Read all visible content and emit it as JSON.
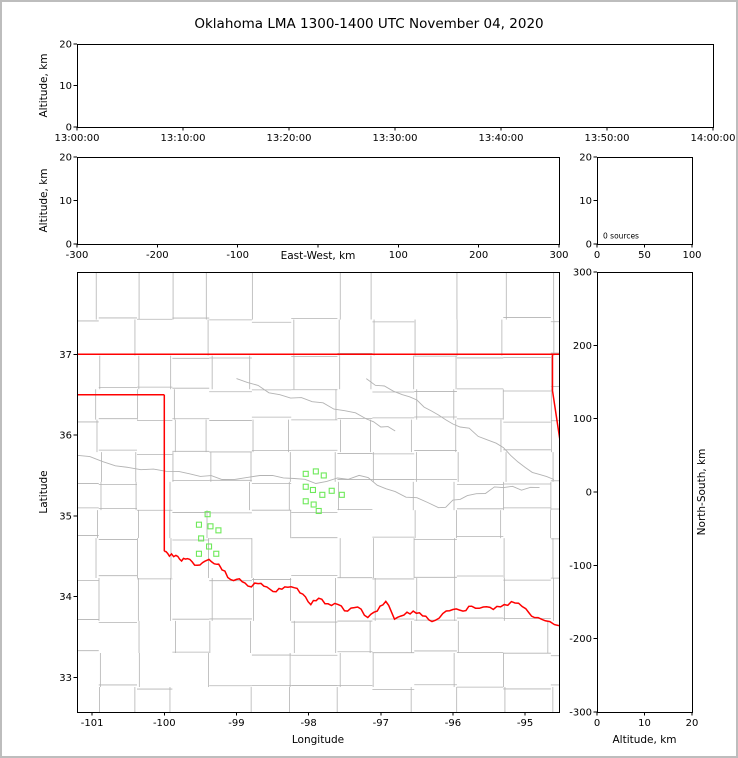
{
  "title": "Oklahoma LMA 1300-1400 UTC November 04, 2020",
  "colors": {
    "background": "#ffffff",
    "frame_border": "#bdbdbd",
    "axis": "#000000",
    "county_line": "#b3b3b3",
    "state_border": "#ff0000",
    "station_marker": "#6ee95a"
  },
  "chart_data": [
    {
      "id": "time_height_panel",
      "type": "scatter",
      "ylabel": "Altitude, km",
      "x_tick_labels": [
        "13:00:00",
        "13:10:00",
        "13:20:00",
        "13:30:00",
        "13:40:00",
        "13:50:00",
        "14:00:00"
      ],
      "ylim": [
        0,
        20
      ],
      "yticks": [
        0,
        10,
        20
      ],
      "points": []
    },
    {
      "id": "east_west_height_panel",
      "type": "scatter",
      "xlabel": "East-West, km",
      "ylabel": "Altitude, km",
      "xlim": [
        -300,
        300
      ],
      "xticks": [
        -300,
        -200,
        -100,
        0,
        100,
        200,
        300
      ],
      "ylim": [
        0,
        20
      ],
      "yticks": [
        0,
        10,
        20
      ],
      "points": []
    },
    {
      "id": "altitude_histogram_panel",
      "type": "bar",
      "annotation": "0 sources",
      "xlim": [
        0,
        100
      ],
      "xticks": [
        0,
        50,
        100
      ],
      "ylim": [
        0,
        20
      ],
      "yticks": [
        0,
        10,
        20
      ],
      "values": []
    },
    {
      "id": "plan_view_map",
      "type": "scatter",
      "xlabel": "Longitude",
      "ylabel": "Latitude",
      "xlim": [
        -101.21,
        -94.53
      ],
      "xticks": [
        -101,
        -100,
        -99,
        -98,
        -97,
        -96,
        -95
      ],
      "ylim": [
        32.57,
        38.02
      ],
      "yticks": [
        33,
        34,
        35,
        36,
        37
      ],
      "station_markers": [
        [
          -99.4,
          35.02
        ],
        [
          -99.52,
          34.89
        ],
        [
          -99.36,
          34.87
        ],
        [
          -99.25,
          34.82
        ],
        [
          -99.49,
          34.72
        ],
        [
          -99.38,
          34.62
        ],
        [
          -99.52,
          34.53
        ],
        [
          -99.28,
          34.53
        ],
        [
          -98.04,
          35.52
        ],
        [
          -97.9,
          35.55
        ],
        [
          -97.79,
          35.5
        ],
        [
          -98.04,
          35.36
        ],
        [
          -97.94,
          35.32
        ],
        [
          -97.68,
          35.31
        ],
        [
          -97.81,
          35.26
        ],
        [
          -98.04,
          35.18
        ],
        [
          -97.93,
          35.14
        ],
        [
          -97.86,
          35.06
        ],
        [
          -97.54,
          35.26
        ]
      ],
      "state_border_segments": [
        [
          [
            -101.21,
            37.0
          ],
          [
            -94.53,
            37.0
          ]
        ],
        [
          [
            -101.21,
            36.5
          ],
          [
            -100.0,
            36.5
          ]
        ],
        [
          [
            -100.0,
            36.5
          ],
          [
            -100.0,
            34.56
          ]
        ],
        [
          [
            -100.0,
            34.56
          ],
          [
            -99.93,
            34.5
          ],
          [
            -99.84,
            34.51
          ],
          [
            -99.76,
            34.44
          ],
          [
            -99.68,
            34.47
          ],
          [
            -99.58,
            34.39
          ],
          [
            -99.47,
            34.42
          ],
          [
            -99.38,
            34.46
          ],
          [
            -99.27,
            34.4
          ],
          [
            -99.2,
            34.33
          ],
          [
            -99.08,
            34.21
          ],
          [
            -98.96,
            34.22
          ],
          [
            -98.84,
            34.13
          ],
          [
            -98.7,
            34.16
          ],
          [
            -98.58,
            34.12
          ],
          [
            -98.45,
            34.06
          ],
          [
            -98.33,
            34.12
          ],
          [
            -98.2,
            34.11
          ],
          [
            -98.08,
            34.03
          ],
          [
            -97.97,
            33.9
          ],
          [
            -97.86,
            33.98
          ],
          [
            -97.73,
            33.91
          ],
          [
            -97.59,
            33.9
          ],
          [
            -97.46,
            33.82
          ],
          [
            -97.32,
            33.87
          ],
          [
            -97.18,
            33.74
          ],
          [
            -97.05,
            33.82
          ],
          [
            -96.93,
            33.94
          ],
          [
            -96.81,
            33.72
          ],
          [
            -96.68,
            33.77
          ],
          [
            -96.55,
            33.82
          ],
          [
            -96.42,
            33.76
          ],
          [
            -96.29,
            33.69
          ],
          [
            -96.14,
            33.79
          ],
          [
            -96.0,
            33.84
          ],
          [
            -95.86,
            33.82
          ],
          [
            -95.74,
            33.88
          ],
          [
            -95.58,
            33.87
          ],
          [
            -95.44,
            33.84
          ],
          [
            -95.29,
            33.9
          ],
          [
            -95.14,
            33.92
          ],
          [
            -94.99,
            33.85
          ],
          [
            -94.87,
            33.74
          ],
          [
            -94.72,
            33.7
          ],
          [
            -94.53,
            33.64
          ]
        ],
        [
          [
            -94.62,
            37.0
          ],
          [
            -94.62,
            36.55
          ],
          [
            -94.47,
            35.66
          ]
        ]
      ]
    },
    {
      "id": "north_south_height_panel",
      "type": "scatter",
      "xlabel": "Altitude, km",
      "ylabel_right": "North-South, km",
      "xlim": [
        0,
        20
      ],
      "xticks": [
        0,
        10,
        20
      ],
      "ylim": [
        -300,
        300
      ],
      "yticks": [
        -300,
        -200,
        -100,
        0,
        100,
        200,
        300
      ],
      "points": []
    }
  ]
}
